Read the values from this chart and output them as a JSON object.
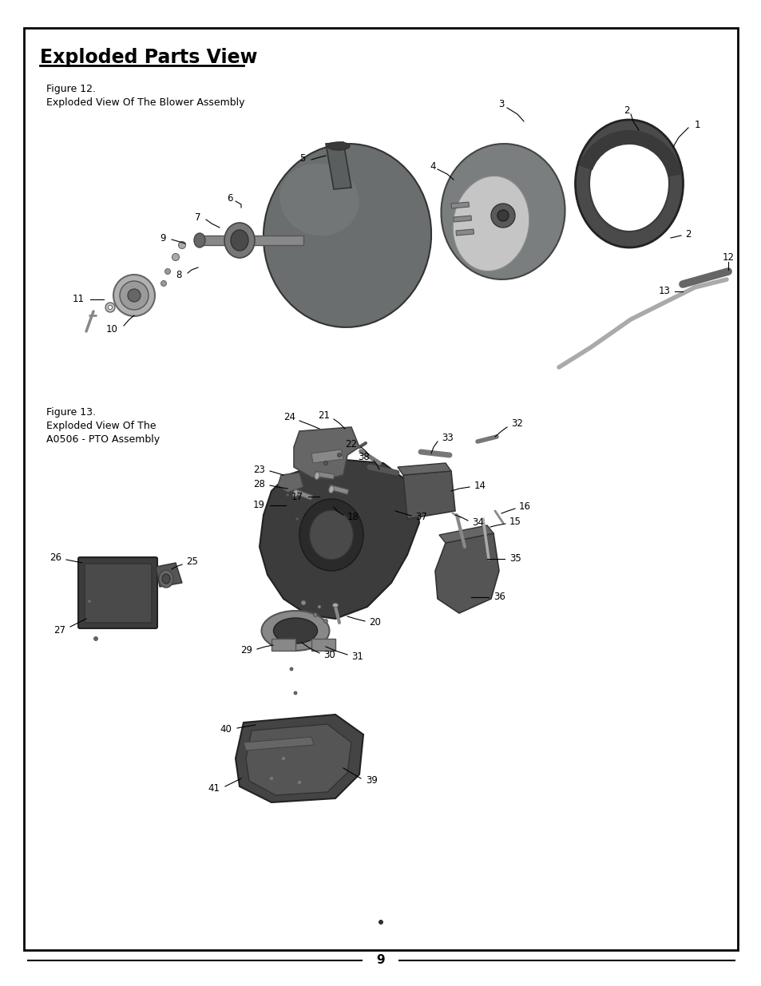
{
  "title": "Exploded Parts View",
  "fig12_label": "Figure 12.",
  "fig12_desc": "Exploded View Of The Blower Assembly",
  "fig13_label": "Figure 13.",
  "fig13_desc1": "Exploded View Of The",
  "fig13_desc2": "A0506 - PTO Assembly",
  "page_number": "9",
  "bg_color": "#ffffff",
  "border_color": "#000000",
  "blower_color": "#6e7070",
  "blower_dark": "#4a4a4a",
  "blower_light": "#9a9a9a",
  "blower_shaft": "#888888",
  "ring_color": "#5a5a5a",
  "fan_color": "#7a7a7a",
  "fan_light": "#b5b5b5",
  "handle_color": "#aaaaaa",
  "pto_dark": "#3c3c3c",
  "pto_mid": "#555555",
  "pto_light": "#888888",
  "bolt_color": "#808080"
}
